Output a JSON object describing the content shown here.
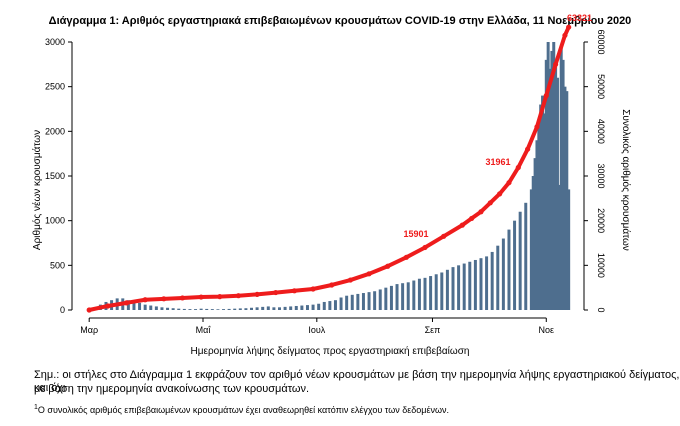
{
  "chart_data": {
    "type": "bar",
    "title": "Διάγραμμα 1: Αριθμός εργαστηριακά επιβεβαιωμένων κρουσμάτων COVID-19 στην Ελλάδα, 11 Νοεμβρίου 2020",
    "xlabel": "Ημερομηνία λήψης δείγματος προς εργαστηριακή επιβεβαίωση",
    "ylabel": "Αριθμός νέων κρουσμάτων",
    "ylabel_right": "Συνολικός αριθμός κρουσμάτων",
    "x_ticks": [
      "Μαρ",
      "Μαΐ",
      "Ιουλ",
      "Σεπ",
      "Νοε"
    ],
    "x_tick_days": [
      0,
      61,
      122,
      184,
      245
    ],
    "ylim": [
      0,
      3000
    ],
    "y_ticks": [
      0,
      500,
      1000,
      1500,
      2000,
      2500,
      3000
    ],
    "y2lim": [
      0,
      60000
    ],
    "y2_ticks": [
      0,
      10000,
      20000,
      30000,
      40000,
      50000,
      60000
    ],
    "bar_color": "#4e6e8e",
    "line_color": "#ee1c1c",
    "series": [
      {
        "kind": "bars",
        "axis": "left",
        "x_days": [
          0,
          3,
          6,
          9,
          12,
          15,
          18,
          21,
          24,
          27,
          30,
          33,
          36,
          39,
          42,
          45,
          48,
          51,
          54,
          57,
          60,
          63,
          66,
          69,
          72,
          75,
          78,
          81,
          84,
          87,
          90,
          93,
          96,
          99,
          102,
          105,
          108,
          111,
          114,
          117,
          120,
          123,
          126,
          129,
          132,
          135,
          138,
          141,
          144,
          147,
          150,
          153,
          156,
          159,
          162,
          165,
          168,
          171,
          174,
          177,
          180,
          183,
          186,
          189,
          192,
          195,
          198,
          201,
          204,
          207,
          210,
          213,
          216,
          219,
          222,
          225,
          228,
          231,
          234,
          237,
          238,
          239,
          240,
          241,
          242,
          243,
          244,
          245,
          246,
          247,
          248,
          249,
          250,
          251,
          252,
          253,
          254,
          255,
          256,
          257
        ],
        "values": [
          10,
          30,
          60,
          90,
          110,
          130,
          130,
          110,
          90,
          80,
          60,
          50,
          40,
          30,
          25,
          20,
          15,
          12,
          10,
          10,
          15,
          12,
          10,
          8,
          10,
          12,
          15,
          18,
          20,
          25,
          30,
          35,
          40,
          30,
          30,
          35,
          40,
          45,
          50,
          55,
          60,
          70,
          90,
          100,
          110,
          140,
          160,
          170,
          180,
          190,
          200,
          210,
          230,
          250,
          270,
          290,
          300,
          310,
          330,
          350,
          360,
          380,
          400,
          420,
          450,
          480,
          500,
          520,
          540,
          560,
          580,
          600,
          650,
          720,
          800,
          900,
          1000,
          1100,
          1200,
          1350,
          1500,
          1700,
          1900,
          2100,
          2300,
          2400,
          2200,
          2800,
          3000,
          2700,
          2900,
          3000,
          2800,
          2600,
          1400,
          2950,
          2800,
          2500,
          2450,
          1350
        ]
      },
      {
        "kind": "line",
        "name": "",
        "axis": "right",
        "x_days": [
          0,
          10,
          20,
          30,
          40,
          50,
          60,
          70,
          80,
          90,
          100,
          110,
          120,
          130,
          140,
          150,
          160,
          170,
          180,
          190,
          200,
          205,
          210,
          215,
          220,
          225,
          230,
          235,
          240,
          245,
          250,
          255,
          257
        ],
        "values": [
          0,
          900,
          1600,
          2300,
          2500,
          2700,
          2900,
          3000,
          3200,
          3500,
          3900,
          4300,
          4700,
          5600,
          6700,
          8100,
          9800,
          11800,
          14000,
          16500,
          19000,
          20500,
          22000,
          24000,
          26000,
          28500,
          31900,
          36000,
          41000,
          48000,
          55000,
          61500,
          63321
        ]
      }
    ],
    "annotations": [
      {
        "text": "15901",
        "x_day": 184,
        "y2": 15901
      },
      {
        "text": "31961",
        "x_day": 228,
        "y2": 31961
      },
      {
        "text": "63321",
        "x_day": 255,
        "y2": 63321
      }
    ]
  },
  "note": {
    "line1": "Σημ.: οι στήλες στο Διάγραμμα 1 εκφράζουν τον αριθμό νέων κρουσμάτων με βάση την ημερομηνία λήψης εργαστηριακού δείγματος, και όχι",
    "line2": "με βάση την ημερομηνία ανακοίνωσης των κρουσμάτων.",
    "footnote_marker": "1",
    "footnote_text": "Ο συνολικός αριθμός επιβεβαιωμένων κρουσμάτων έχει αναθεωρηθεί κατόπιν ελέγχου των δεδομένων."
  }
}
